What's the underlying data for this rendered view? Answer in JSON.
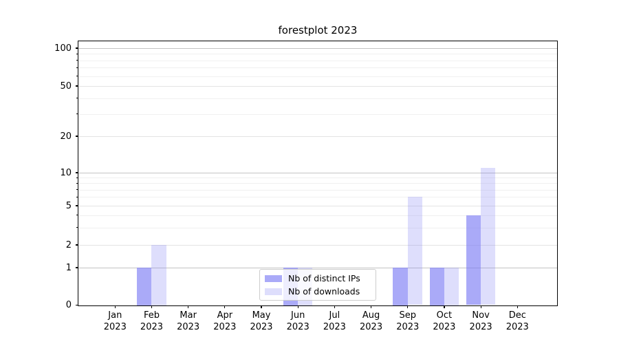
{
  "figure": {
    "title": "forestplot 2023"
  },
  "chart_data": {
    "type": "bar",
    "title": "forestplot 2023",
    "categories": [
      "Jan",
      "Feb",
      "Mar",
      "Apr",
      "May",
      "Jun",
      "Jul",
      "Aug",
      "Sep",
      "Oct",
      "Nov",
      "Dec"
    ],
    "category_year": "2023",
    "series": [
      {
        "name": "Nb of distinct IPs",
        "color": "rgba(125,125,245,0.65)",
        "values": [
          0,
          1,
          0,
          0,
          0,
          1,
          0,
          0,
          1,
          1,
          4,
          0
        ]
      },
      {
        "name": "Nb of downloads",
        "color": "rgba(125,125,245,0.25)",
        "values": [
          0,
          2,
          0,
          0,
          0,
          1,
          0,
          0,
          6,
          1,
          11,
          0
        ]
      }
    ],
    "xlabel": "",
    "ylabel": "",
    "yaxis": {
      "scale": "symlog",
      "labeled_ticks": [
        0,
        1,
        2,
        5,
        10,
        20,
        50,
        100
      ],
      "minor_ticks": [
        3,
        4,
        6,
        7,
        8,
        9,
        30,
        40,
        60,
        70,
        80,
        90
      ],
      "ylim": [
        0,
        113
      ]
    },
    "grid": "on",
    "legend": {
      "position": "lower-center"
    }
  },
  "colors": {
    "bar_primary": "rgba(125,125,245,0.65)",
    "bar_secondary": "rgba(125,125,245,0.25)",
    "grid_decade": "#c3c3c3",
    "grid_labeled": "#e3e3e3",
    "grid_minor": "#f0f0f0",
    "axis": "#000000",
    "legend_border": "#cccccc",
    "legend_bg": "rgba(255,255,255,0.8)"
  }
}
